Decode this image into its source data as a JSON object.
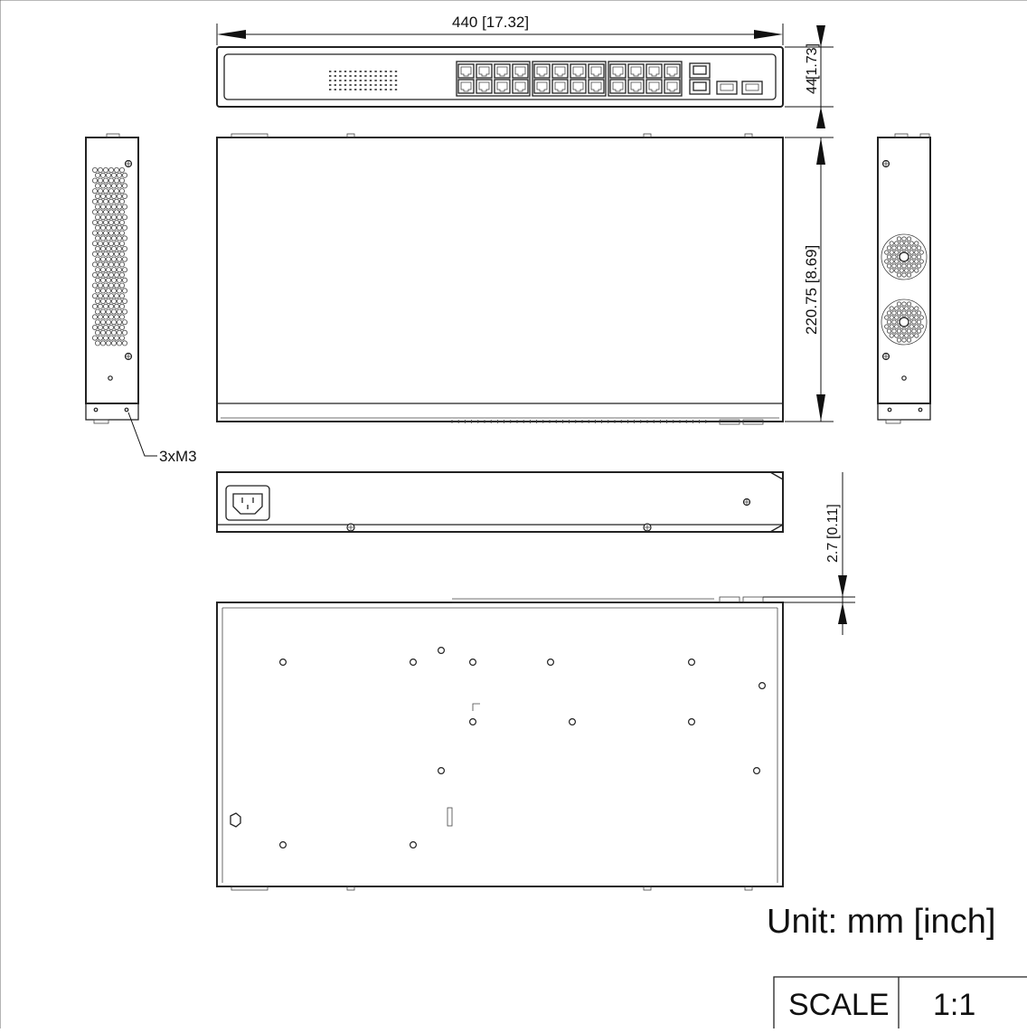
{
  "dimensions": {
    "width": "440  [17.32]",
    "height": "44",
    "height_inch": "[1.73]",
    "depth": "220.75  [8.69]",
    "foot_mm": "2.7",
    "foot_inch": "[0.11]"
  },
  "callouts": {
    "screws": "3xM3"
  },
  "unit_note": "Unit: mm [inch]",
  "scale": {
    "label": "SCALE",
    "value": "1:1"
  },
  "front_panel": {
    "rj45_columns": 12,
    "uplink_ports": 2,
    "sfp_ports": 2
  }
}
